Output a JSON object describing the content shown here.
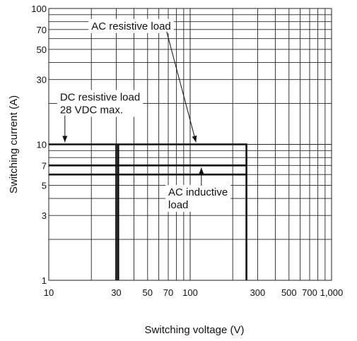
{
  "chart_data": {
    "type": "line",
    "xlabel": "Switching voltage (V)",
    "ylabel": "Switching current (A)",
    "xscale": "log",
    "yscale": "log",
    "xlim": [
      10,
      1000
    ],
    "ylim": [
      1,
      100
    ],
    "grid": true,
    "x_tick_labels": [
      {
        "value": 10,
        "label": "10"
      },
      {
        "value": 30,
        "label": "30"
      },
      {
        "value": 50,
        "label": "50"
      },
      {
        "value": 70,
        "label": "70"
      },
      {
        "value": 100,
        "label": "100"
      },
      {
        "value": 300,
        "label": "300"
      },
      {
        "value": 500,
        "label": "500"
      },
      {
        "value": 700,
        "label": "700"
      },
      {
        "value": 1000,
        "label": "1,000"
      }
    ],
    "y_tick_labels": [
      {
        "value": 1,
        "label": "1"
      },
      {
        "value": 3,
        "label": "3"
      },
      {
        "value": 5,
        "label": "5"
      },
      {
        "value": 7,
        "label": "7"
      },
      {
        "value": 10,
        "label": "10"
      },
      {
        "value": 30,
        "label": "30"
      },
      {
        "value": 50,
        "label": "50"
      },
      {
        "value": 70,
        "label": "70"
      },
      {
        "value": 100,
        "label": "100"
      }
    ],
    "series": [
      {
        "points": [
          [
            10,
            10
          ],
          [
            250,
            10
          ],
          [
            250,
            1
          ]
        ]
      },
      {
        "points": [
          [
            10,
            7
          ],
          [
            250,
            7
          ]
        ]
      },
      {
        "points": [
          [
            10,
            6
          ],
          [
            250,
            6
          ]
        ]
      },
      {
        "points": [
          [
            30,
            10
          ],
          [
            30,
            1
          ]
        ]
      },
      {
        "points": [
          [
            31,
            10
          ],
          [
            31,
            1
          ]
        ]
      }
    ],
    "annotations": [
      {
        "lines": [
          "AC resistive load"
        ],
        "text_at": [
          20,
          70
        ],
        "arrow_to": [
          110,
          10
        ]
      },
      {
        "lines": [
          "DC resistive load",
          "28 VDC max."
        ],
        "text_at": [
          12,
          21
        ],
        "arrow_to": [
          13,
          10
        ]
      },
      {
        "lines": [
          "AC inductive",
          "load"
        ],
        "text_at": [
          70,
          4.2
        ],
        "arrow_to": [
          120,
          7
        ]
      }
    ]
  }
}
